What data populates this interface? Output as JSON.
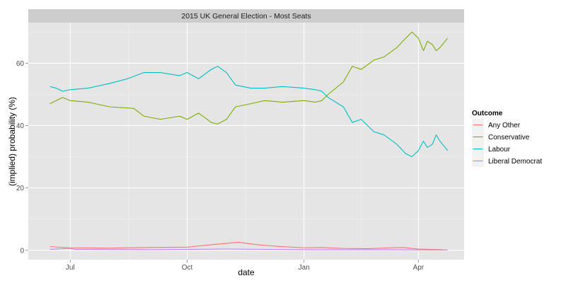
{
  "chart_data": {
    "type": "line",
    "title": "2015 UK General Election - Most Seats",
    "xlabel": "date",
    "ylabel": "(implied) probability (%)",
    "xlim": [
      "2014-05-29",
      "2015-05-07"
    ],
    "ylim": [
      -3,
      73
    ],
    "x_ticks": [
      {
        "date": "2014-07-01",
        "label": "Jul"
      },
      {
        "date": "2014-10-01",
        "label": "Oct"
      },
      {
        "date": "2015-01-01",
        "label": "Jan"
      },
      {
        "date": "2015-04-01",
        "label": "Apr"
      }
    ],
    "y_ticks": [
      0,
      20,
      40,
      60
    ],
    "legend": {
      "title": "Outcome",
      "position": "right"
    },
    "grid": true,
    "series": [
      {
        "name": "Any Other",
        "color": "#F8766D",
        "points": [
          [
            "2014-06-15",
            1.2
          ],
          [
            "2014-07-01",
            0.8
          ],
          [
            "2014-08-01",
            0.7
          ],
          [
            "2014-09-01",
            0.9
          ],
          [
            "2014-10-01",
            1.0
          ],
          [
            "2014-10-20",
            1.8
          ],
          [
            "2014-11-01",
            2.2
          ],
          [
            "2014-11-10",
            2.6
          ],
          [
            "2014-11-25",
            1.8
          ],
          [
            "2014-12-10",
            1.3
          ],
          [
            "2015-01-01",
            0.8
          ],
          [
            "2015-01-15",
            0.9
          ],
          [
            "2015-02-01",
            0.6
          ],
          [
            "2015-02-20",
            0.5
          ],
          [
            "2015-03-10",
            0.8
          ],
          [
            "2015-03-20",
            0.9
          ],
          [
            "2015-04-01",
            0.4
          ],
          [
            "2015-04-20",
            0.2
          ]
        ]
      },
      {
        "name": "Conservative",
        "color": "#7CAE00",
        "points": [
          [
            "2014-06-15",
            47
          ],
          [
            "2014-06-20",
            48
          ],
          [
            "2014-06-25",
            49
          ],
          [
            "2014-07-01",
            48
          ],
          [
            "2014-07-15",
            47.5
          ],
          [
            "2014-08-01",
            46
          ],
          [
            "2014-08-20",
            45.5
          ],
          [
            "2014-08-28",
            43
          ],
          [
            "2014-09-10",
            42
          ],
          [
            "2014-09-25",
            43
          ],
          [
            "2014-10-01",
            42
          ],
          [
            "2014-10-10",
            44
          ],
          [
            "2014-10-20",
            41
          ],
          [
            "2014-10-25",
            40.5
          ],
          [
            "2014-11-01",
            42
          ],
          [
            "2014-11-08",
            46
          ],
          [
            "2014-11-20",
            47
          ],
          [
            "2014-12-01",
            48
          ],
          [
            "2014-12-15",
            47.5
          ],
          [
            "2015-01-01",
            48
          ],
          [
            "2015-01-10",
            47.5
          ],
          [
            "2015-01-15",
            48
          ],
          [
            "2015-01-20",
            50
          ],
          [
            "2015-02-01",
            54
          ],
          [
            "2015-02-08",
            59
          ],
          [
            "2015-02-15",
            58
          ],
          [
            "2015-02-25",
            61
          ],
          [
            "2015-03-05",
            62
          ],
          [
            "2015-03-15",
            65
          ],
          [
            "2015-03-22",
            68
          ],
          [
            "2015-03-27",
            70
          ],
          [
            "2015-04-01",
            68
          ],
          [
            "2015-04-05",
            64
          ],
          [
            "2015-04-08",
            67
          ],
          [
            "2015-04-12",
            66
          ],
          [
            "2015-04-15",
            64
          ],
          [
            "2015-04-18",
            65
          ],
          [
            "2015-04-22",
            67
          ],
          [
            "2015-04-24",
            68
          ]
        ]
      },
      {
        "name": "Labour",
        "color": "#00BFC4",
        "points": [
          [
            "2014-06-15",
            52.5
          ],
          [
            "2014-06-20",
            52
          ],
          [
            "2014-06-25",
            51
          ],
          [
            "2014-07-01",
            51.5
          ],
          [
            "2014-07-15",
            52
          ],
          [
            "2014-08-01",
            53.5
          ],
          [
            "2014-08-15",
            55
          ],
          [
            "2014-08-28",
            57
          ],
          [
            "2014-09-10",
            57
          ],
          [
            "2014-09-25",
            56
          ],
          [
            "2014-10-01",
            57
          ],
          [
            "2014-10-10",
            55
          ],
          [
            "2014-10-20",
            58
          ],
          [
            "2014-10-25",
            59
          ],
          [
            "2014-11-01",
            57
          ],
          [
            "2014-11-08",
            53
          ],
          [
            "2014-11-20",
            52
          ],
          [
            "2014-12-01",
            52
          ],
          [
            "2014-12-15",
            52.5
          ],
          [
            "2015-01-01",
            52
          ],
          [
            "2015-01-10",
            51.5
          ],
          [
            "2015-01-15",
            51
          ],
          [
            "2015-01-20",
            49
          ],
          [
            "2015-02-01",
            46
          ],
          [
            "2015-02-08",
            41
          ],
          [
            "2015-02-15",
            42
          ],
          [
            "2015-02-25",
            38
          ],
          [
            "2015-03-05",
            37
          ],
          [
            "2015-03-15",
            34
          ],
          [
            "2015-03-22",
            31
          ],
          [
            "2015-03-27",
            30
          ],
          [
            "2015-04-01",
            32
          ],
          [
            "2015-04-05",
            35
          ],
          [
            "2015-04-08",
            33
          ],
          [
            "2015-04-12",
            34
          ],
          [
            "2015-04-15",
            37
          ],
          [
            "2015-04-18",
            35
          ],
          [
            "2015-04-22",
            33
          ],
          [
            "2015-04-24",
            32
          ]
        ]
      },
      {
        "name": "Liberal Democrat",
        "color": "#C77CFF",
        "points": [
          [
            "2014-06-15",
            0.3
          ],
          [
            "2014-07-01",
            0.6
          ],
          [
            "2014-07-05",
            0.3
          ],
          [
            "2014-09-01",
            0.2
          ],
          [
            "2014-11-01",
            0.4
          ],
          [
            "2015-01-01",
            0.2
          ],
          [
            "2015-03-01",
            0.2
          ],
          [
            "2015-04-24",
            0.1
          ]
        ]
      }
    ]
  }
}
